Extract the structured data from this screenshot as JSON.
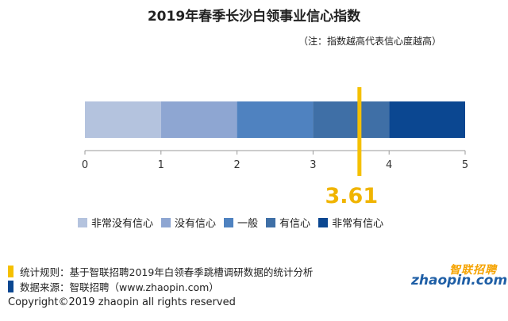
{
  "title": "2019年春季长沙白领事业信心指数",
  "note": "（注：指数越高代表信心度越高）",
  "colors": {
    "marker": "#f5c000",
    "marker_text": "#f0b400",
    "segments": [
      "#b4c3de",
      "#8ea6d2",
      "#4f82c0",
      "#3f6fa6",
      "#0b4791"
    ]
  },
  "chart_data": {
    "type": "bar",
    "orientation": "horizontal-stacked",
    "xlim": [
      0,
      5
    ],
    "ticks": [
      0,
      1,
      2,
      3,
      4,
      5
    ],
    "categories": [
      "非常没有信心",
      "没有信心",
      "一般",
      "有信心",
      "非常有信心"
    ],
    "segments": [
      {
        "name": "非常没有信心",
        "start": 0,
        "end": 1
      },
      {
        "name": "没有信心",
        "start": 1,
        "end": 2
      },
      {
        "name": "一般",
        "start": 2,
        "end": 3
      },
      {
        "name": "有信心",
        "start": 3,
        "end": 4
      },
      {
        "name": "非常有信心",
        "start": 4,
        "end": 5
      }
    ],
    "marker": {
      "value": 3.61,
      "label": "3.61"
    },
    "legend": "bottom"
  },
  "footer": {
    "rule": "统计规则：基于智联招聘2019年白领春季跳槽调研数据的统计分析",
    "source": "数据来源：智联招聘（www.zhaopin.com）",
    "copyright": "Copyright©2019 zhaopin all rights reserved"
  },
  "logo": {
    "cn": "智联招聘",
    "en": "zhaopin.com"
  }
}
